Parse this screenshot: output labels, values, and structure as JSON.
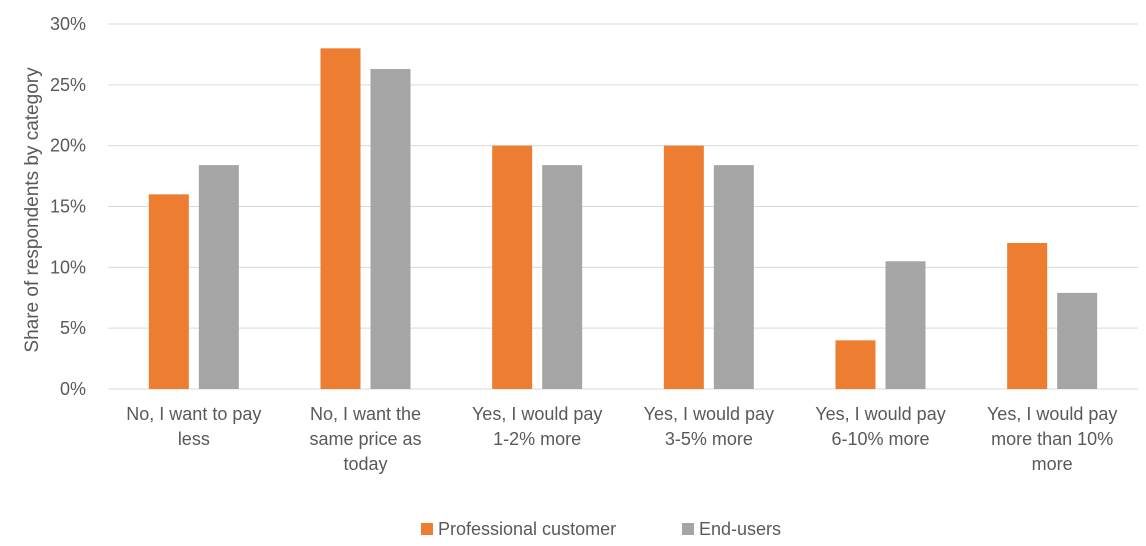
{
  "chart_data": {
    "type": "bar",
    "title": "",
    "xlabel": "",
    "ylabel": "Share of respondents by category",
    "ylim": [
      0,
      30
    ],
    "yticks": [
      "0%",
      "5%",
      "10%",
      "15%",
      "20%",
      "25%",
      "30%"
    ],
    "ytick_values": [
      0,
      5,
      10,
      15,
      20,
      25,
      30
    ],
    "categories": [
      [
        "No, I want to pay",
        "less"
      ],
      [
        "No, I want the",
        "same price as",
        "today"
      ],
      [
        "Yes, I would pay",
        "1-2% more"
      ],
      [
        "Yes, I would pay",
        "3-5% more"
      ],
      [
        "Yes, I would pay",
        "6-10% more"
      ],
      [
        "Yes, I would pay",
        "more than 10%",
        "more"
      ]
    ],
    "series": [
      {
        "name": "Professional customer",
        "color": "#ED7D31",
        "values": [
          16,
          28,
          20,
          20,
          4,
          12
        ]
      },
      {
        "name": "End-users",
        "color": "#A5A5A5",
        "values": [
          18.4,
          26.3,
          18.4,
          18.4,
          10.5,
          7.9
        ]
      }
    ],
    "grid": true,
    "gridline_color": "#D9D9D9",
    "legend_position": "bottom"
  }
}
